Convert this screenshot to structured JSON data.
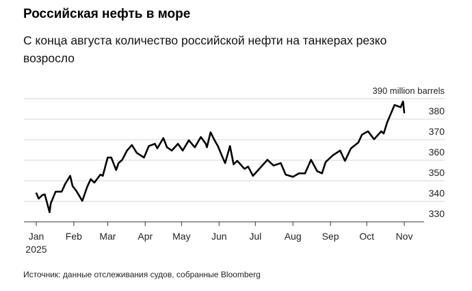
{
  "header": {
    "title": "Российская нефть в море",
    "subtitle": "С конца августа количество российской нефти на танкерах резко возросло"
  },
  "footer": {
    "source": "Источник: данные отслеживания судов, собранные Bloomberg"
  },
  "chart_data": {
    "type": "line",
    "title": "Российская нефть в море",
    "unit_label": "390 million barrels",
    "ylim": [
      330,
      390
    ],
    "y_ticks": [
      "390",
      "380",
      "370",
      "360",
      "350",
      "340",
      "330"
    ],
    "x_ticks": [
      "Jan",
      "Feb",
      "Mar",
      "Apr",
      "May",
      "Jun",
      "Jul",
      "Aug",
      "Sep",
      "Oct",
      "Nov"
    ],
    "x_year_label": "2025",
    "grid": true,
    "line_color": "#000000",
    "series": [
      {
        "x": [
          "2025-01-01",
          "2025-01-03",
          "2025-01-06",
          "2025-01-08",
          "2025-01-12",
          "2025-01-13",
          "2025-01-17",
          "2025-01-22",
          "2025-01-25",
          "2025-01-29",
          "2025-01-31",
          "2025-02-03",
          "2025-02-08",
          "2025-02-12",
          "2025-02-15",
          "2025-02-18",
          "2025-02-23",
          "2025-02-25",
          "2025-03-01",
          "2025-03-04",
          "2025-03-08",
          "2025-03-10",
          "2025-03-13",
          "2025-03-17",
          "2025-03-21",
          "2025-03-25",
          "2025-03-31",
          "2025-04-04",
          "2025-04-09",
          "2025-04-11",
          "2025-04-16",
          "2025-04-19",
          "2025-04-23",
          "2025-04-28",
          "2025-05-02",
          "2025-05-07",
          "2025-05-12",
          "2025-05-17",
          "2025-05-21",
          "2025-05-22",
          "2025-05-25",
          "2025-05-28",
          "2025-05-31",
          "2025-06-04",
          "2025-06-06",
          "2025-06-10",
          "2025-06-13",
          "2025-06-16",
          "2025-06-22",
          "2025-06-25",
          "2025-06-29",
          "2025-07-05",
          "2025-07-11",
          "2025-07-16",
          "2025-07-22",
          "2025-07-26",
          "2025-08-01",
          "2025-08-06",
          "2025-08-11",
          "2025-08-16",
          "2025-08-21",
          "2025-08-25",
          "2025-08-28",
          "2025-09-03",
          "2025-09-09",
          "2025-09-13",
          "2025-09-18",
          "2025-09-24",
          "2025-09-27",
          "2025-10-02",
          "2025-10-07",
          "2025-10-13",
          "2025-10-15",
          "2025-10-18",
          "2025-10-24",
          "2025-10-29",
          "2025-10-31",
          "2025-11-01"
        ],
        "values": [
          344.1,
          341.3,
          343,
          343.4,
          334.7,
          339,
          344.7,
          344.7,
          348.6,
          352.4,
          347.4,
          345.2,
          340.2,
          346.9,
          350.8,
          349.1,
          353,
          352.4,
          361.3,
          361.3,
          355.2,
          358.6,
          360.2,
          364.7,
          367.4,
          363.6,
          361.3,
          366.9,
          368,
          365.8,
          370.8,
          366.3,
          364.7,
          368,
          364.7,
          369.7,
          366.3,
          371.3,
          368,
          366.3,
          373.6,
          370,
          366.9,
          361.3,
          358.6,
          366.9,
          358,
          359.7,
          355.8,
          356.9,
          352.4,
          356.3,
          360.2,
          357.4,
          358.6,
          353,
          351.9,
          353.6,
          353.6,
          360.2,
          354.7,
          353.6,
          359.1,
          362.4,
          364.7,
          359.7,
          365.8,
          368.6,
          372.4,
          374.1,
          370.2,
          374.1,
          373,
          378.6,
          386.9,
          385.8,
          388.6,
          383
        ]
      }
    ]
  }
}
